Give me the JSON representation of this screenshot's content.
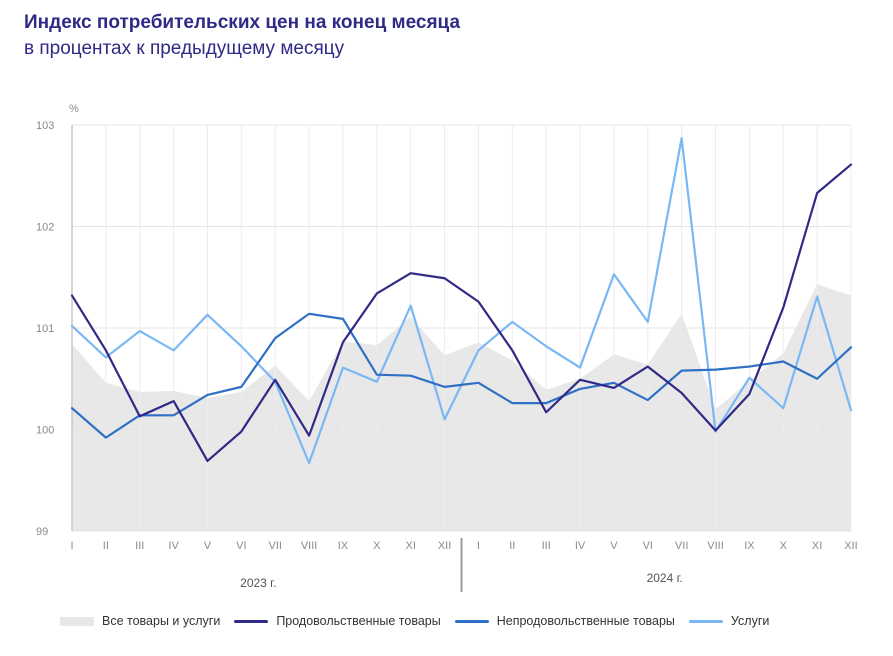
{
  "title": "Индекс потребительских цен на конец месяца",
  "subtitle": "в процентах к предыдущему месяцу",
  "chart_data": {
    "type": "line",
    "ylabel": "%",
    "ylim": [
      99,
      103
    ],
    "yticks": [
      99,
      100,
      101,
      102,
      103
    ],
    "categories": [
      "I",
      "II",
      "III",
      "IV",
      "V",
      "VI",
      "VII",
      "VIII",
      "IX",
      "X",
      "XI",
      "XII",
      "I",
      "II",
      "III",
      "IV",
      "V",
      "VI",
      "VII",
      "VIII",
      "IX",
      "X",
      "XI",
      "XII"
    ],
    "year_labels": [
      "2023 г.",
      "2024 г."
    ],
    "grid": true,
    "legend_position": "bottom",
    "series": [
      {
        "name": "Все товары и услуги",
        "kind": "area",
        "color": "#e8e8e8",
        "values": [
          100.84,
          100.46,
          100.37,
          100.38,
          100.31,
          100.37,
          100.63,
          100.28,
          100.87,
          100.83,
          101.11,
          100.73,
          100.86,
          100.68,
          100.39,
          100.5,
          100.74,
          100.64,
          101.14,
          100.2,
          100.48,
          100.75,
          101.43,
          101.32
        ]
      },
      {
        "name": "Продовольственные товары",
        "kind": "line",
        "color": "#2f2a86",
        "values": [
          101.32,
          100.78,
          100.13,
          100.28,
          99.69,
          99.98,
          100.49,
          99.94,
          100.86,
          101.34,
          101.54,
          101.49,
          101.26,
          100.78,
          100.17,
          100.49,
          100.41,
          100.62,
          100.36,
          99.99,
          100.35,
          101.2,
          102.33,
          102.61
        ]
      },
      {
        "name": "Непродовольственные товары",
        "kind": "line",
        "color": "#2f6fc4",
        "values": [
          100.21,
          99.92,
          100.14,
          100.14,
          100.34,
          100.42,
          100.9,
          101.14,
          101.09,
          100.54,
          100.53,
          100.42,
          100.46,
          100.26,
          100.26,
          100.4,
          100.46,
          100.29,
          100.58,
          100.59,
          100.62,
          100.67,
          100.5,
          100.81
        ]
      },
      {
        "name": "Услуги",
        "kind": "line",
        "color": "#7ab8f5",
        "values": [
          101.02,
          100.71,
          100.97,
          100.78,
          101.13,
          100.82,
          100.47,
          99.67,
          100.61,
          100.47,
          101.22,
          100.1,
          100.78,
          101.06,
          100.82,
          100.61,
          101.53,
          101.06,
          102.87,
          99.98,
          100.51,
          100.21,
          101.31,
          100.19
        ]
      }
    ]
  }
}
